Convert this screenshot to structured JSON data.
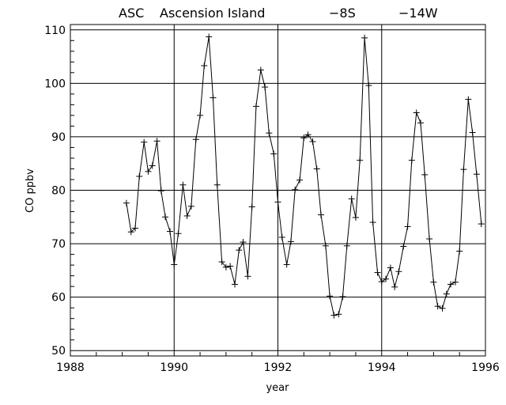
{
  "chart_data": {
    "type": "line",
    "title": {
      "station_code": "ASC",
      "station_name": "Ascension Island",
      "latitude": "−8S",
      "longitude": "−14W"
    },
    "xlabel": "year",
    "ylabel": "CO ppbv",
    "xlim": [
      1988,
      1996
    ],
    "ylim": [
      49,
      111
    ],
    "x_ticks": [
      1988,
      1990,
      1992,
      1994,
      1996
    ],
    "y_ticks": [
      50,
      60,
      70,
      80,
      90,
      100,
      110
    ],
    "grid": true,
    "marker": "plus",
    "series": [
      {
        "x": [
          1989.08,
          1989.17,
          1989.25,
          1989.33,
          1989.42,
          1989.5,
          1989.58,
          1989.67,
          1989.75,
          1989.83,
          1989.92,
          1990.0,
          1990.08,
          1990.17,
          1990.25,
          1990.33,
          1990.42,
          1990.5,
          1990.58,
          1990.67,
          1990.75,
          1990.83,
          1990.92,
          1991.0,
          1991.08,
          1991.17,
          1991.25,
          1991.33,
          1991.42,
          1991.5,
          1991.58,
          1991.67,
          1991.75,
          1991.83,
          1991.92,
          1992.0,
          1992.08,
          1992.17,
          1992.25,
          1992.33,
          1992.42,
          1992.5,
          1992.58,
          1992.67,
          1992.75,
          1992.83,
          1992.92,
          1993.0,
          1993.08,
          1993.17,
          1993.25,
          1993.33,
          1993.42,
          1993.5,
          1993.58,
          1993.67,
          1993.75,
          1993.83,
          1993.92,
          1994.0,
          1994.08,
          1994.17,
          1994.25,
          1994.33,
          1994.42,
          1994.5,
          1994.58,
          1994.67,
          1994.75,
          1994.83,
          1994.92,
          1995.0,
          1995.08,
          1995.17,
          1995.25,
          1995.33,
          1995.42,
          1995.5,
          1995.58,
          1995.67,
          1995.75,
          1995.83,
          1995.92
        ],
        "y": [
          77.6,
          72.2,
          72.9,
          82.6,
          89.0,
          83.5,
          84.6,
          89.2,
          79.9,
          75.0,
          72.3,
          66.1,
          71.9,
          81.0,
          75.2,
          77.0,
          89.5,
          94.0,
          103.3,
          108.7,
          97.3,
          81.0,
          66.6,
          65.6,
          65.8,
          62.4,
          68.8,
          70.3,
          63.9,
          76.9,
          95.7,
          102.5,
          99.3,
          90.7,
          86.8,
          77.8,
          71.2,
          66.1,
          70.4,
          80.1,
          81.9,
          89.8,
          90.4,
          89.1,
          84.0,
          75.4,
          69.6,
          60.2,
          56.6,
          56.8,
          60.1,
          69.6,
          78.4,
          74.9,
          85.6,
          108.5,
          99.6,
          74.0,
          64.6,
          62.9,
          63.4,
          65.5,
          61.9,
          64.8,
          69.5,
          73.2,
          85.6,
          94.5,
          92.6,
          82.9,
          70.9,
          62.8,
          58.3,
          57.9,
          60.6,
          62.4,
          62.8,
          68.6,
          83.9,
          97.0,
          90.8,
          83.0,
          73.7
        ]
      }
    ]
  }
}
